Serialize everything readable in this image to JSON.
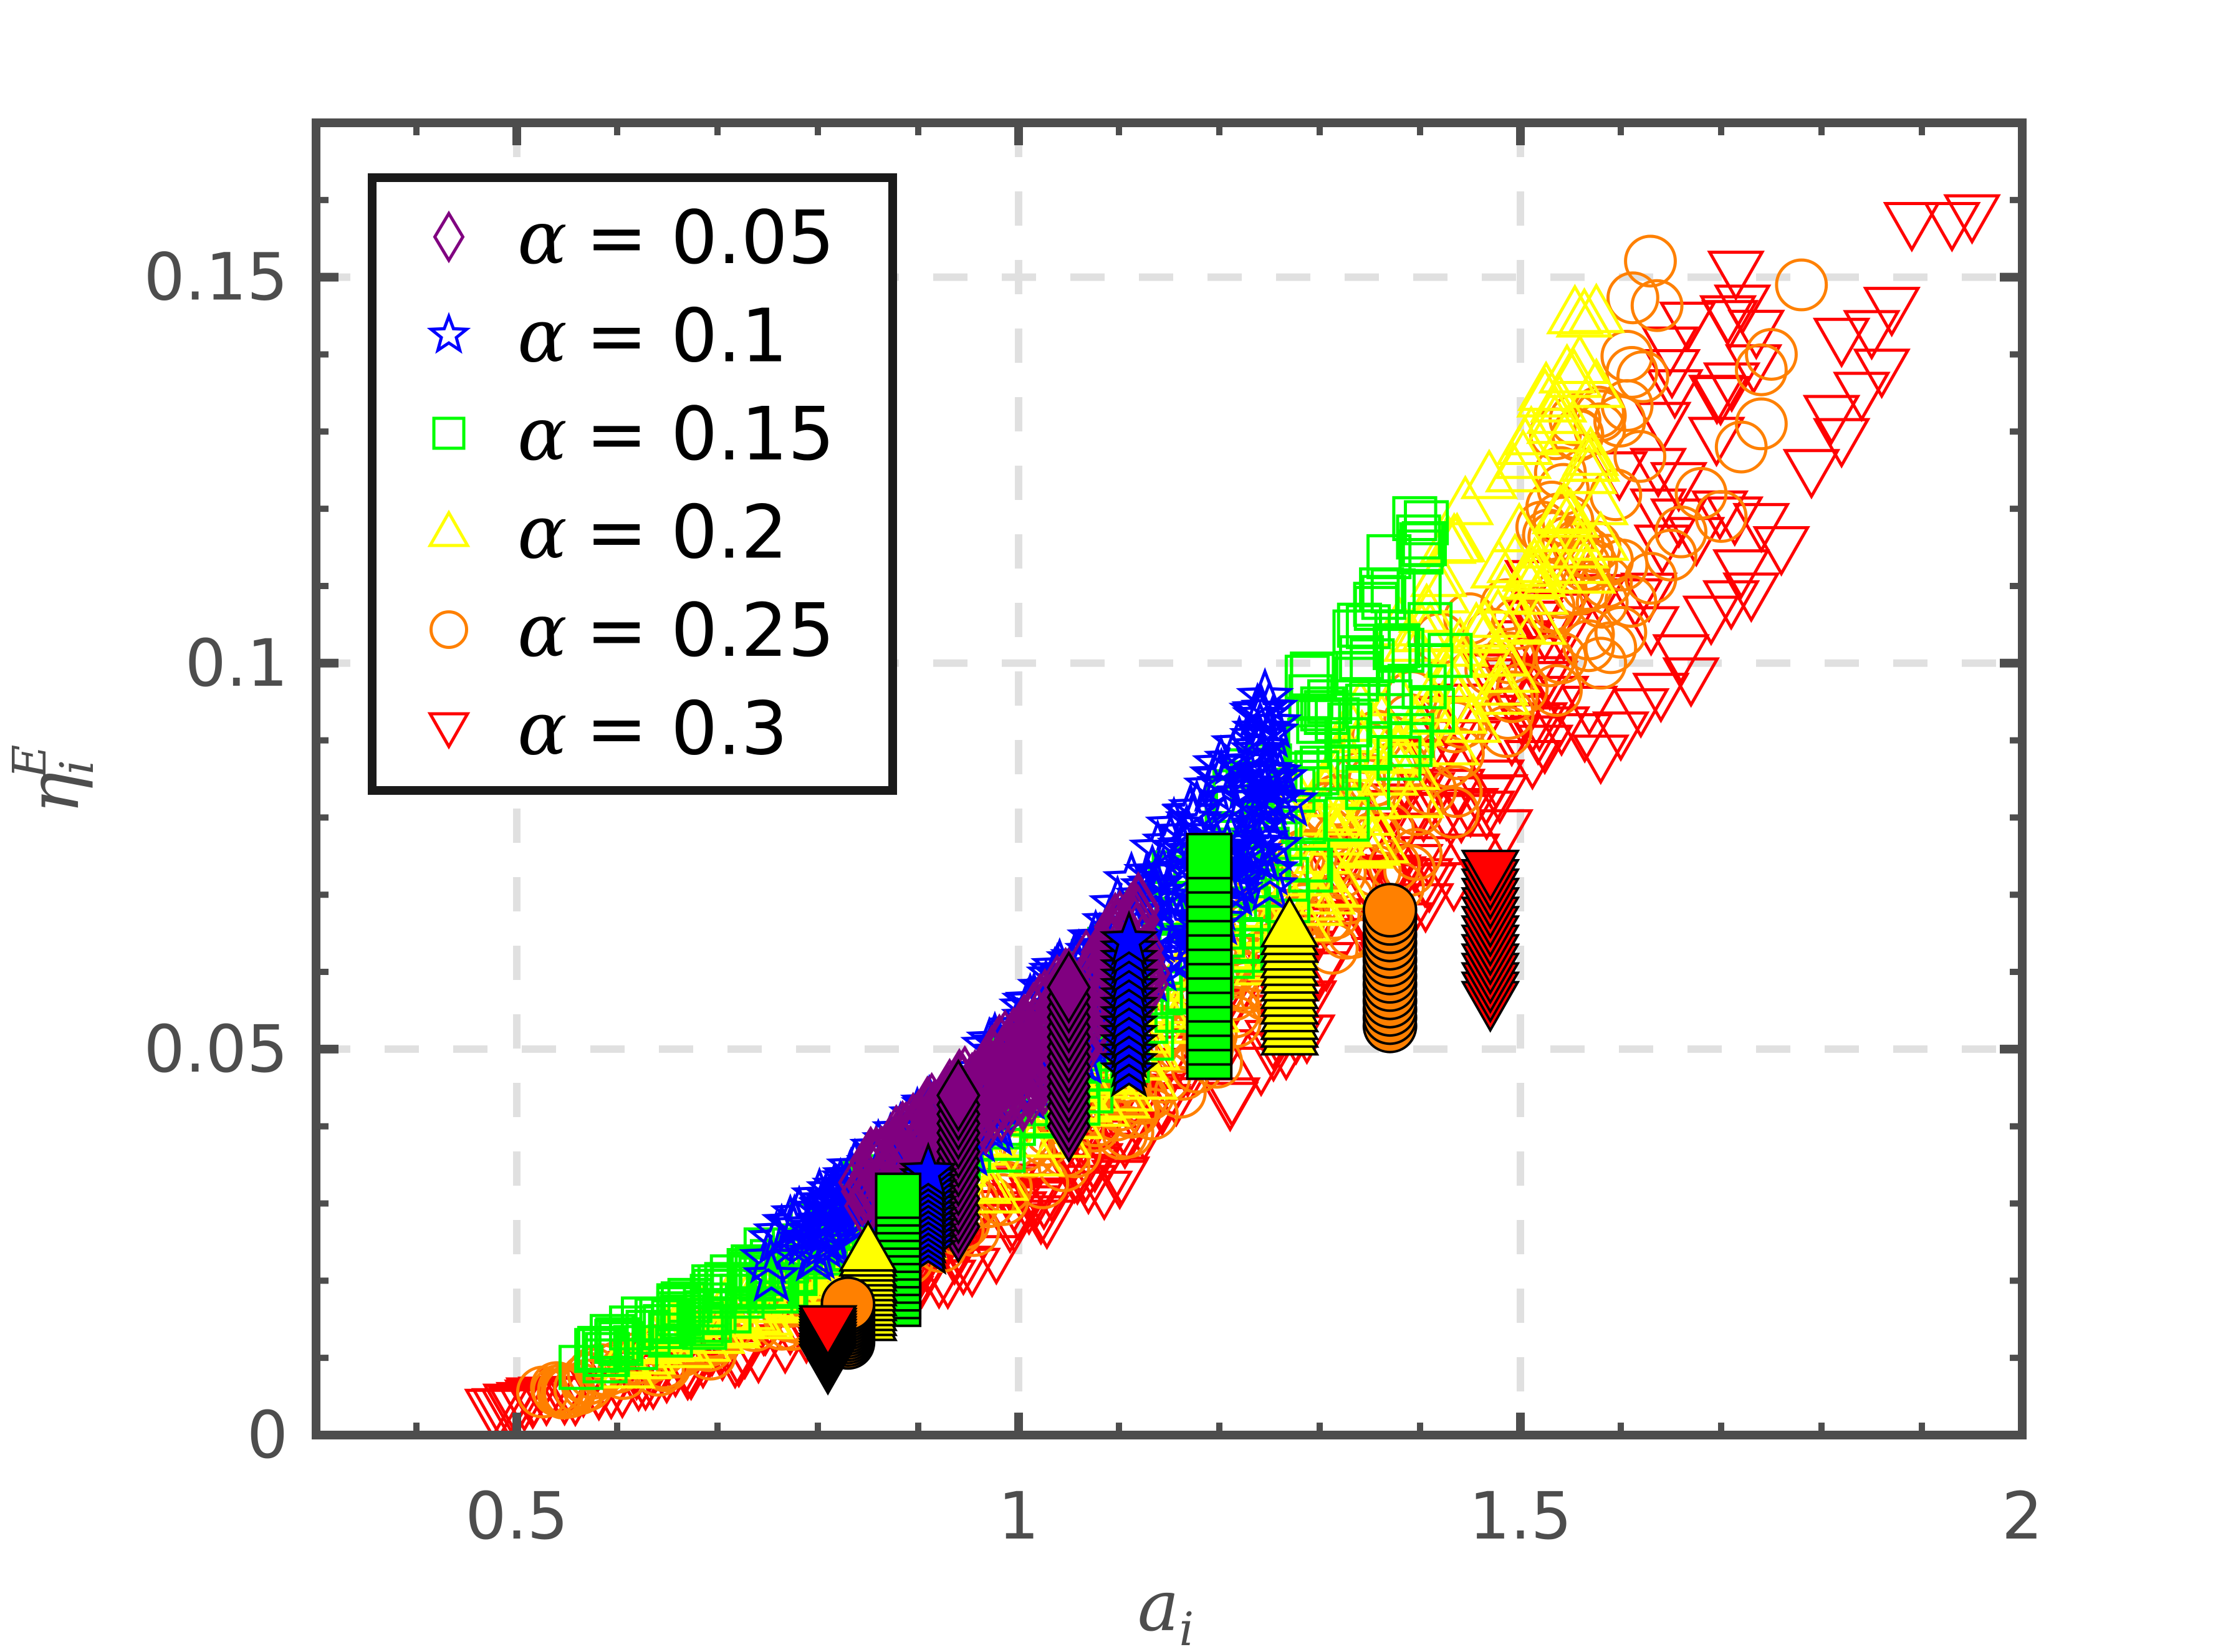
{
  "chart_data": {
    "type": "scatter",
    "xlabel_base": "a",
    "xlabel_sub": "i",
    "ylabel_base": "η",
    "ylabel_sub": "i",
    "ylabel_sup": "E",
    "xlim": [
      0.3,
      2.0
    ],
    "ylim": [
      0,
      0.17
    ],
    "xticks": [
      "0.5",
      "1",
      "1.5",
      "2"
    ],
    "xtick_values": [
      0.5,
      1.0,
      1.5,
      2.0
    ],
    "yticks": [
      "0",
      "0.05",
      "0.1",
      "0.15"
    ],
    "ytick_values": [
      0,
      0.05,
      0.1,
      0.15
    ],
    "grid": true,
    "legend_position": "top-left",
    "series": [
      {
        "name": "α = 0.05",
        "symbol": "α",
        "equals": "=",
        "value": "0.05",
        "marker": "diamond",
        "color": "#800080",
        "band": {
          "x_min": 0.84,
          "x_max": 1.13,
          "coef": 0.048,
          "exp": 2.4,
          "spread": 0.1
        },
        "cluster": {
          "x": 0.94,
          "y_min": 0.027,
          "y_max": 0.044
        },
        "cluster2": {
          "x": 1.05,
          "y_min": 0.04,
          "y_max": 0.058
        }
      },
      {
        "name": "α = 0.1",
        "symbol": "α",
        "equals": "=",
        "value": "0.1",
        "marker": "star",
        "color": "#0000ff",
        "band": {
          "x_min": 0.75,
          "x_max": 1.26,
          "coef": 0.048,
          "exp": 2.55,
          "spread": 0.14
        },
        "extra_points": [
          [
            1.25,
            0.094
          ],
          [
            1.24,
            0.089
          ],
          [
            1.23,
            0.087
          ],
          [
            1.26,
            0.085
          ],
          [
            1.24,
            0.081
          ],
          [
            1.27,
            0.082
          ],
          [
            1.25,
            0.071
          ]
        ],
        "cluster": {
          "x": 0.91,
          "y_min": 0.024,
          "y_max": 0.034
        },
        "cluster2": {
          "x": 1.11,
          "y_min": 0.047,
          "y_max": 0.064
        }
      },
      {
        "name": "α = 0.15",
        "symbol": "α",
        "equals": "=",
        "value": "0.15",
        "marker": "square",
        "color": "#00ff00",
        "band": {
          "x_min": 0.56,
          "x_max": 1.42,
          "coef": 0.044,
          "exp": 2.6,
          "spread": 0.16
        },
        "extra_points": [
          [
            1.41,
            0.105
          ],
          [
            1.43,
            0.101
          ],
          [
            1.39,
            0.097
          ],
          [
            1.37,
            0.095
          ],
          [
            1.33,
            0.092
          ],
          [
            1.31,
            0.095
          ],
          [
            1.35,
            0.089
          ],
          [
            1.29,
            0.09
          ]
        ],
        "cluster": {
          "x": 0.88,
          "y_min": 0.017,
          "y_max": 0.031
        },
        "cluster2": {
          "x": 1.19,
          "y_min": 0.049,
          "y_max": 0.075
        }
      },
      {
        "name": "α = 0.2",
        "symbol": "α",
        "equals": "=",
        "value": "0.2",
        "marker": "triangle-up",
        "color": "#ffff00",
        "band": {
          "x_min": 0.6,
          "x_max": 1.58,
          "coef": 0.039,
          "exp": 2.7,
          "spread": 0.15
        },
        "extra_points": [
          [
            1.57,
            0.127
          ],
          [
            1.55,
            0.119
          ],
          [
            1.56,
            0.115
          ],
          [
            1.58,
            0.116
          ],
          [
            1.56,
            0.113
          ],
          [
            1.51,
            0.112
          ],
          [
            1.52,
            0.109
          ],
          [
            1.46,
            0.104
          ],
          [
            1.48,
            0.101
          ],
          [
            1.44,
            0.098
          ]
        ],
        "cluster": {
          "x": 0.85,
          "y_min": 0.015,
          "y_max": 0.024
        },
        "cluster2": {
          "x": 1.27,
          "y_min": 0.052,
          "y_max": 0.066
        }
      },
      {
        "name": "α = 0.25",
        "symbol": "α",
        "equals": "=",
        "value": "0.25",
        "marker": "circle",
        "color": "#ff8000",
        "band": {
          "x_min": 0.52,
          "x_max": 1.64,
          "coef": 0.034,
          "exp": 2.8,
          "spread": 0.15
        },
        "extra_points": [
          [
            1.78,
            0.149
          ],
          [
            1.75,
            0.14
          ],
          [
            1.74,
            0.138
          ],
          [
            1.74,
            0.131
          ],
          [
            1.72,
            0.128
          ],
          [
            1.68,
            0.122
          ],
          [
            1.7,
            0.119
          ],
          [
            1.66,
            0.117
          ],
          [
            1.65,
            0.114
          ],
          [
            1.63,
            0.111
          ],
          [
            1.61,
            0.108
          ],
          [
            1.6,
            0.104
          ],
          [
            1.59,
            0.102
          ],
          [
            1.58,
            0.1
          ]
        ],
        "cluster": {
          "x": 0.83,
          "y_min": 0.012,
          "y_max": 0.017
        },
        "cluster2": {
          "x": 1.37,
          "y_min": 0.053,
          "y_max": 0.068
        }
      },
      {
        "name": "α = 0.3",
        "symbol": "α",
        "equals": "=",
        "value": "0.3",
        "marker": "triangle-down",
        "color": "#ff0000",
        "band": {
          "x_min": 0.46,
          "x_max": 1.74,
          "coef": 0.029,
          "exp": 2.9,
          "spread": 0.15
        },
        "extra_points": [
          [
            1.95,
            0.158
          ],
          [
            1.93,
            0.157
          ],
          [
            1.89,
            0.157
          ],
          [
            1.87,
            0.146
          ],
          [
            1.85,
            0.143
          ],
          [
            1.82,
            0.142
          ],
          [
            1.86,
            0.138
          ],
          [
            1.84,
            0.135
          ],
          [
            1.81,
            0.132
          ],
          [
            1.82,
            0.129
          ],
          [
            1.79,
            0.125
          ],
          [
            1.74,
            0.118
          ],
          [
            1.76,
            0.115
          ],
          [
            1.72,
            0.112
          ],
          [
            1.71,
            0.108
          ],
          [
            1.69,
            0.106
          ],
          [
            1.73,
            0.109
          ],
          [
            1.66,
            0.101
          ],
          [
            1.67,
            0.098
          ],
          [
            1.64,
            0.096
          ],
          [
            1.62,
            0.094
          ],
          [
            1.6,
            0.091
          ],
          [
            1.58,
            0.088
          ]
        ],
        "cluster": {
          "x": 0.81,
          "y_min": 0.009,
          "y_max": 0.014
        },
        "cluster2": {
          "x": 1.47,
          "y_min": 0.056,
          "y_max": 0.073
        }
      }
    ]
  }
}
